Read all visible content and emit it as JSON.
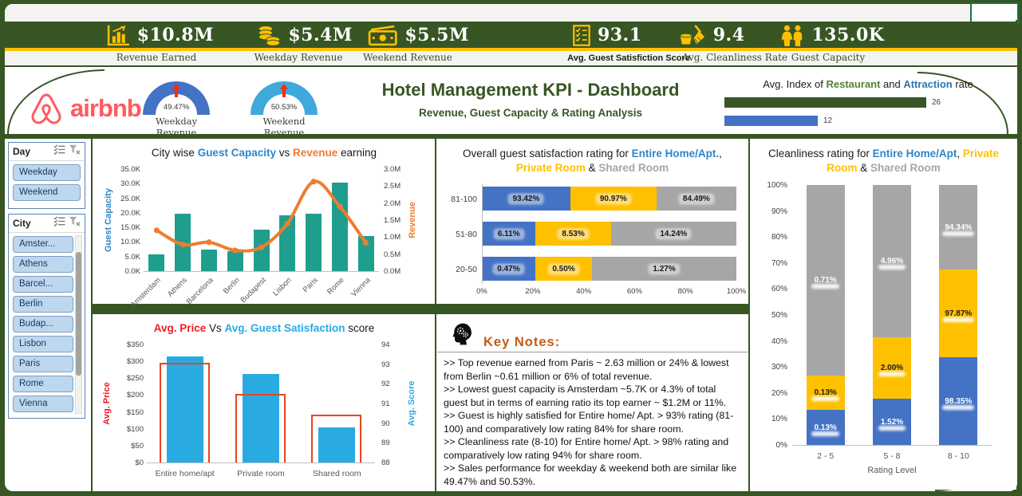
{
  "colors": {
    "dark_green": "#375623",
    "gold": "#FFC000",
    "teal": "#1F9E8E",
    "orange": "#ED7D31",
    "blue": "#4472C4",
    "gray": "#A6A6A6",
    "sky_blue": "#29ABE2",
    "red_outline": "#E8441F",
    "airbnb_red": "#FF5A5F"
  },
  "kpi_bar": {
    "items": [
      {
        "icon": "bar-chart-icon",
        "value": "$10.8M",
        "label": "Revenue Earned",
        "label_bold": false
      },
      {
        "icon": "coins-icon",
        "value": "$5.4M",
        "label": "Weekday Revenue",
        "label_bold": false
      },
      {
        "icon": "cash-icon",
        "value": "$5.5M",
        "label": "Weekend Revenue",
        "label_bold": false
      },
      {
        "icon": "checklist-icon",
        "value": "93.1",
        "label": "Avg. Guest Satisfiction Score",
        "label_bold": true
      },
      {
        "icon": "broom-icon",
        "value": "9.4",
        "label": "Avg. Cleanliness Rate",
        "label_bold": false
      },
      {
        "icon": "people-icon",
        "value": "135.0K",
        "label": "Guest Capacity",
        "label_bold": false
      }
    ]
  },
  "header": {
    "brand": "airbnb",
    "title": "Hotel Management KPI - Dashboard",
    "subtitle": "Revenue, Guest Capacity & Rating Analysis",
    "gauges": [
      {
        "value": "49.47%",
        "label": "Weekday Revenue",
        "color": "#4472C4"
      },
      {
        "value": "50.53%",
        "label": "Weekend Revenue",
        "color": "#3FA9DC"
      }
    ]
  },
  "slicers": {
    "day": {
      "title": "Day",
      "icons": [
        "multi-select-icon",
        "clear-filter-icon"
      ],
      "buttons": [
        "Weekday",
        "Weekend"
      ]
    },
    "city": {
      "title": "City",
      "icons": [
        "multi-select-icon",
        "clear-filter-icon"
      ],
      "buttons": [
        "Amster...",
        "Athens",
        "Barcel...",
        "Berlin",
        "Budap...",
        "Lisbon",
        "Paris",
        "Rome",
        "Vienna"
      ]
    }
  },
  "chart_data": [
    {
      "id": "city_combo",
      "type": "bar+line",
      "title_parts": [
        {
          "t": "City wise "
        },
        {
          "t": "Guest Capacity",
          "c": "#2E86C8"
        },
        {
          "t": " vs "
        },
        {
          "t": "Revenue",
          "c": "#ED7D31"
        },
        {
          "t": " earning"
        }
      ],
      "categories": [
        "Amsterdam",
        "Athens",
        "Barcelona",
        "Berlin",
        "Budapest",
        "Lisbon",
        "Paris",
        "Rome",
        "Vienna"
      ],
      "series": [
        {
          "name": "Guest Capacity",
          "type": "bar",
          "color": "#1F9E8E",
          "axis": "left",
          "values": [
            5.7,
            19.7,
            7.3,
            6.9,
            14.3,
            19.2,
            19.7,
            30.3,
            11.9
          ]
        },
        {
          "name": "Revenue",
          "type": "line",
          "color": "#ED7D31",
          "axis": "right",
          "values": [
            1.2,
            0.78,
            0.85,
            0.61,
            0.7,
            1.4,
            2.63,
            1.9,
            0.83
          ]
        }
      ],
      "y_left": {
        "label": "Guest Capacity",
        "color": "#2E86C8",
        "max": 35,
        "ticks": [
          "35.0K",
          "30.0K",
          "25.0K",
          "20.0K",
          "15.0K",
          "10.0K",
          "5.0K",
          "0.0K"
        ]
      },
      "y_right": {
        "label": "Revenue",
        "color": "#ED7D31",
        "max": 3,
        "ticks": [
          "3.0M",
          "2.5M",
          "2.0M",
          "1.5M",
          "1.0M",
          "0.5M",
          "0.0M"
        ]
      }
    },
    {
      "id": "satisfaction",
      "type": "stacked-bar-100",
      "title_parts": [
        {
          "t": "Overall guest satisfaction rating for "
        },
        {
          "t": "Entire Home/Apt.",
          "c": "#2E86C8"
        },
        {
          "t": ", "
        },
        {
          "t": "Private Room",
          "c": "#FFC000"
        },
        {
          "t": " & "
        },
        {
          "t": "Shared Room",
          "c": "#A6A6A6"
        }
      ],
      "categories": [
        "81-100",
        "51-80",
        "20-50"
      ],
      "series": [
        {
          "name": "Entire Home/Apt.",
          "color": "#4472C4",
          "values": [
            93.42,
            6.11,
            0.47
          ]
        },
        {
          "name": "Private Room",
          "color": "#FFC000",
          "values": [
            90.97,
            8.53,
            0.5
          ]
        },
        {
          "name": "Shared Room",
          "color": "#A6A6A6",
          "values": [
            84.49,
            14.24,
            1.27
          ]
        }
      ],
      "x_ticks": [
        "0%",
        "20%",
        "40%",
        "60%",
        "80%",
        "100%"
      ]
    },
    {
      "id": "cleanliness",
      "type": "stacked-column-100",
      "title_parts": [
        {
          "t": "Cleanliness rating for "
        },
        {
          "t": "Entire Home/Apt",
          "c": "#2E86C8"
        },
        {
          "t": ", "
        },
        {
          "t": "Private Room",
          "c": "#FFC000"
        },
        {
          "t": " & "
        },
        {
          "t": "Shared Room",
          "c": "#A6A6A6"
        }
      ],
      "categories": [
        "2 - 5",
        "5 - 8",
        "8 - 10"
      ],
      "xlabel": "Rating Level",
      "series": [
        {
          "name": "Entire Home/Apt",
          "color": "#4472C4",
          "values": [
            0.13,
            1.52,
            98.35
          ]
        },
        {
          "name": "Private Room",
          "color": "#FFC000",
          "values": [
            0.13,
            2.0,
            97.87
          ]
        },
        {
          "name": "Shared Room",
          "color": "#A6A6A6",
          "values": [
            0.71,
            4.96,
            94.34
          ]
        }
      ],
      "y_ticks": [
        "100%",
        "90%",
        "80%",
        "70%",
        "60%",
        "50%",
        "40%",
        "30%",
        "20%",
        "10%",
        "0%"
      ]
    },
    {
      "id": "price_score",
      "type": "bar",
      "title_parts": [
        {
          "t": "Avg. Price",
          "c": "#ED1C24"
        },
        {
          "t": " Vs "
        },
        {
          "t": "Avg. Guest Satisfaction",
          "c": "#29ABE2"
        },
        {
          "t": " score"
        }
      ],
      "categories": [
        "Entire home/apt",
        "Private room",
        "Shared room"
      ],
      "series": [
        {
          "name": "Avg. Price",
          "color": "#E8441F",
          "style": "outline",
          "axis": "left",
          "values": [
            290,
            198,
            138
          ]
        },
        {
          "name": "Avg. Score",
          "color": "#29ABE2",
          "style": "fill",
          "axis": "right",
          "values": [
            93.4,
            92.5,
            89.8
          ]
        }
      ],
      "y_left": {
        "label": "Avg. Price",
        "color": "#ED1C24",
        "max": 350,
        "ticks": [
          "$350",
          "$300",
          "$250",
          "$200",
          "$150",
          "$100",
          "$50",
          "$0"
        ]
      },
      "y_right": {
        "label": "Avg. Score",
        "color": "#29ABE2",
        "min": 88,
        "max": 94,
        "ticks": [
          "94",
          "93",
          "92",
          "91",
          "90",
          "89",
          "88"
        ]
      }
    },
    {
      "id": "index_rate",
      "type": "bar",
      "title_parts": [
        {
          "t": "Avg.  Index of "
        },
        {
          "t": "Restaurant",
          "c": "#538135"
        },
        {
          "t": " and "
        },
        {
          "t": "Attraction",
          "c": "#2E75B6"
        },
        {
          "t": " rate"
        }
      ],
      "categories": [
        "Restaurant",
        "Attraction"
      ],
      "bars": [
        {
          "name": "Restaurant",
          "value": 26,
          "color": "#375623"
        },
        {
          "name": "Attraction",
          "value": 12,
          "color": "#4472C4"
        }
      ],
      "xmax": 28
    }
  ],
  "key_notes": {
    "icon": "head-gears-icon",
    "heading": "Key  Notes:",
    "notes": [
      ">> Top revenue earned from Paris ~ 2.63 million or 24% & lowest from Berlin ~0.61 million or 6% of total revenue.",
      ">> Lowest guest capacity is Amsterdam ~5.7K or 4.3% of total guest but in terms of earning ratio its top earner ~ $1.2M or 11%.",
      ">> Guest is highly satisfied for Entire home/ Apt. > 93% rating (81-100) and comparatively low rating 84% for share room.",
      ">> Cleanliness rate (8-10) for Entire home/ Apt. > 98% rating and comparatively low rating 94% for share room.",
      ">> Sales performance for weekday & weekend both are similar like 49.47% and 50.53%."
    ]
  }
}
